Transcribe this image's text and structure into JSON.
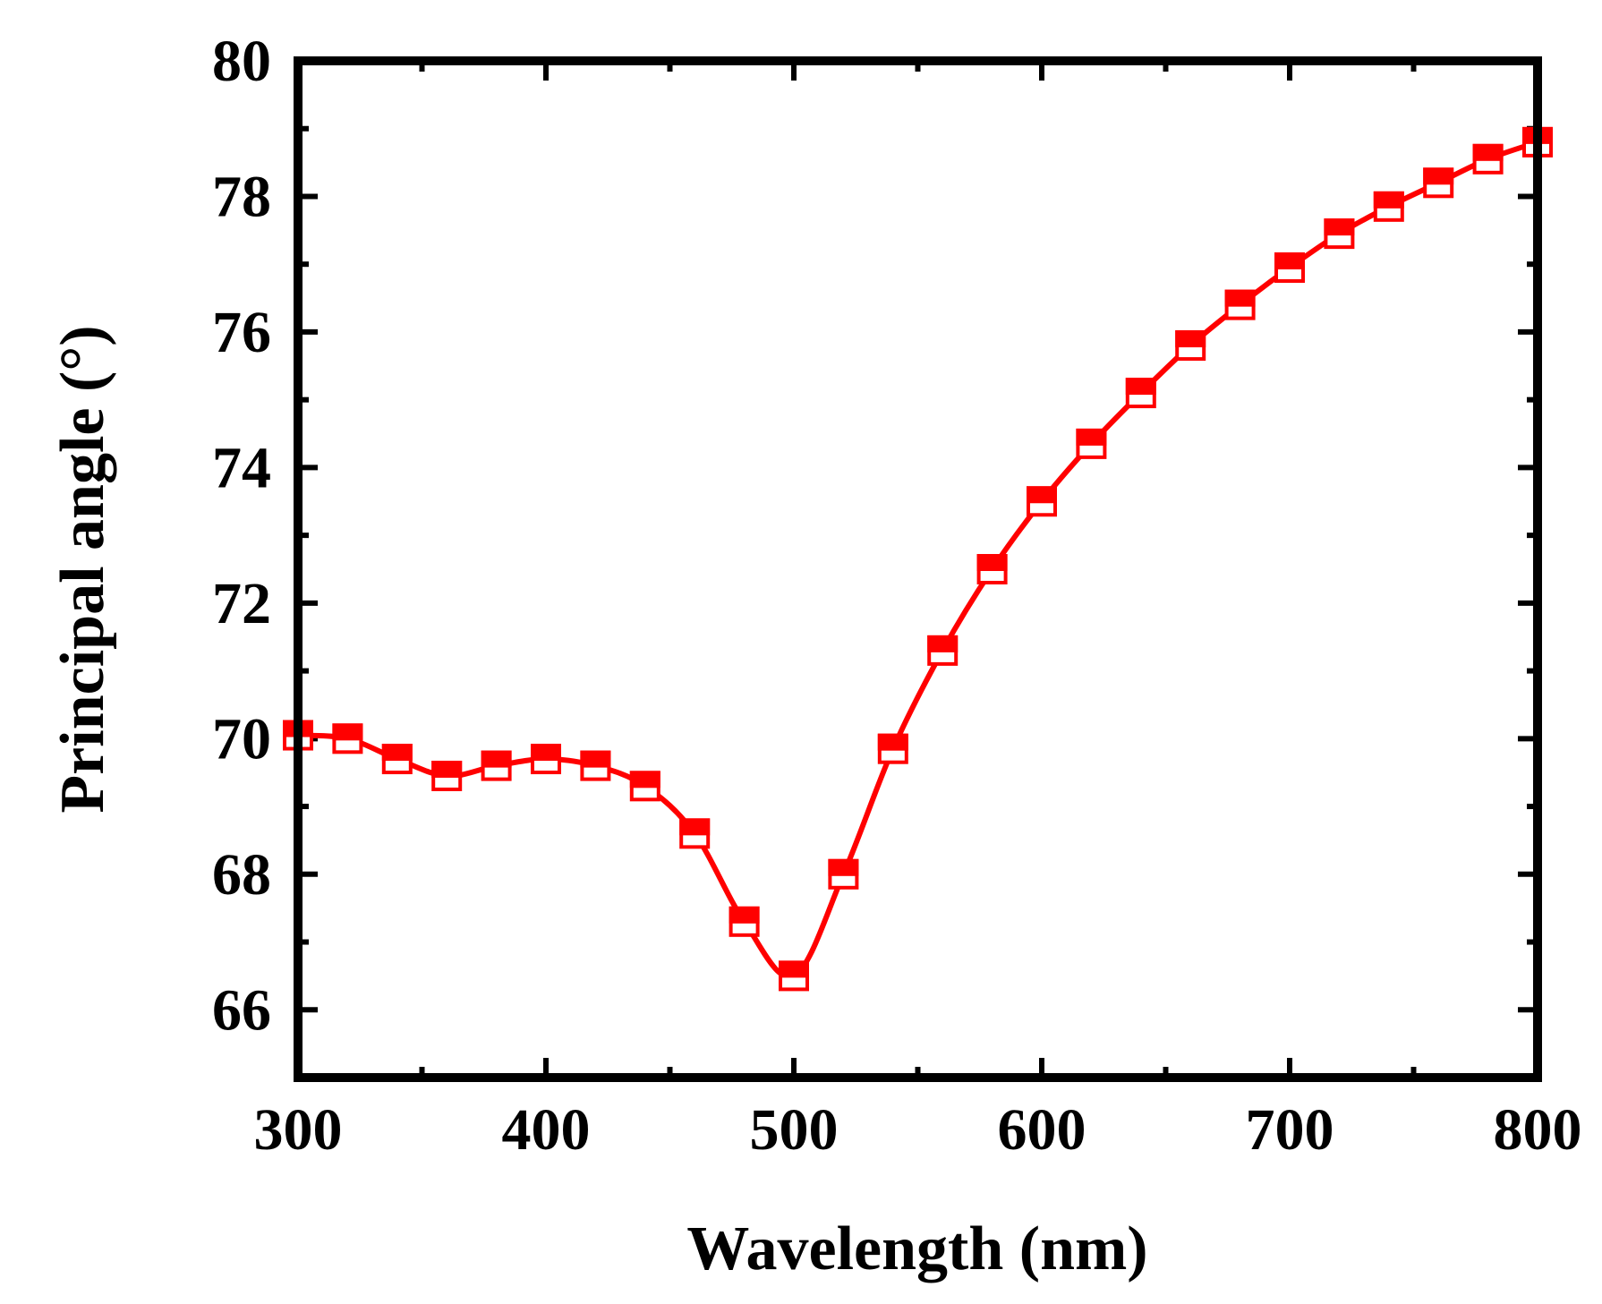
{
  "chart_data": {
    "type": "line",
    "title": "",
    "xlabel": "Wavelength (nm)",
    "ylabel": "Principal angle (°)",
    "xlim": [
      300,
      800
    ],
    "ylim": [
      65,
      80
    ],
    "xticks": [
      300,
      400,
      500,
      600,
      700,
      800
    ],
    "yticks": [
      66,
      68,
      70,
      72,
      74,
      76,
      78,
      80
    ],
    "xtick_labels": [
      "300",
      "400",
      "500",
      "600",
      "700",
      "800"
    ],
    "ytick_labels": [
      "66",
      "68",
      "70",
      "72",
      "74",
      "76",
      "78",
      "80"
    ],
    "grid": false,
    "legend": "none",
    "series": [
      {
        "name": "Principal angle",
        "color": "#ff0000",
        "marker": "half-filled-square",
        "x": [
          300,
          320,
          340,
          360,
          380,
          400,
          420,
          440,
          460,
          480,
          500,
          520,
          540,
          560,
          580,
          600,
          620,
          640,
          660,
          680,
          700,
          720,
          740,
          760,
          780,
          800
        ],
        "y": [
          70.05,
          70.0,
          69.7,
          69.45,
          69.6,
          69.7,
          69.6,
          69.3,
          68.6,
          67.3,
          66.5,
          68.0,
          69.85,
          71.3,
          72.5,
          73.5,
          74.35,
          75.1,
          75.8,
          76.4,
          76.95,
          77.45,
          77.85,
          78.2,
          78.55,
          78.8
        ]
      }
    ]
  }
}
